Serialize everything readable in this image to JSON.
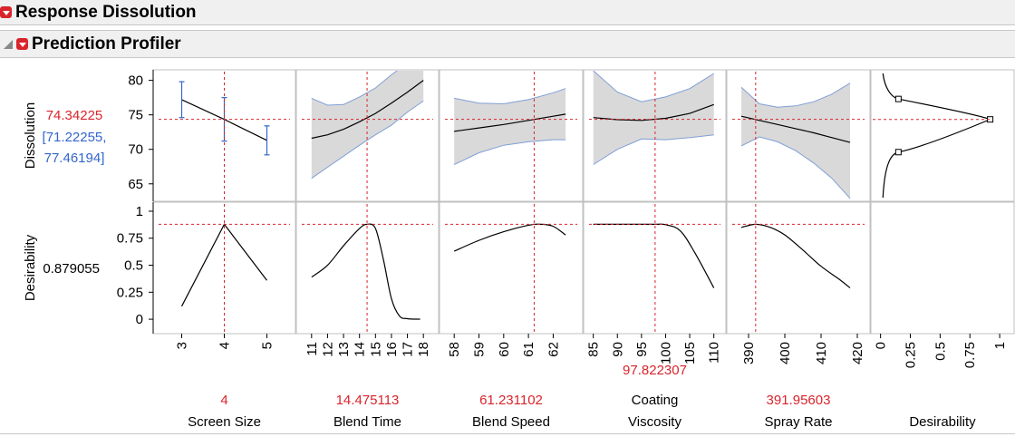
{
  "headers": {
    "response_title": "Response Dissolution",
    "profiler_title": "Prediction Profiler"
  },
  "colors": {
    "red": "#d9242b",
    "blue": "#3366cc",
    "band": "#d9d9d9",
    "band_edge": "#7f9fd6"
  },
  "chart_data": {
    "type": "line",
    "responses": [
      {
        "name": "Dissolution",
        "current": "74.34225",
        "ci_text": [
          "[71.22255,",
          "77.46194]"
        ],
        "current_value": 74.34225,
        "ylim": [
          63,
          81
        ],
        "yticks": [
          65,
          70,
          75,
          80
        ]
      },
      {
        "name": "Desirability",
        "current": "0.879055",
        "current_value": 0.879055,
        "ylim": [
          -0.1,
          1.05
        ],
        "yticks": [
          0,
          0.25,
          0.5,
          0.75,
          1
        ],
        "ytick_labels": [
          "0",
          "0.25",
          "0.5",
          "0.75",
          "1"
        ]
      }
    ],
    "factors": [
      {
        "name": "Screen Size",
        "name_lines": [
          "Screen Size"
        ],
        "value_text": "4",
        "current": 4,
        "xlim": [
          2.5,
          5.5
        ],
        "ticks": [
          3,
          4,
          5
        ],
        "tick_labels": [
          "3",
          "4",
          "5"
        ],
        "dissolution": {
          "style": "categorical",
          "points": [
            [
              3,
              77.2
            ],
            [
              4,
              74.34
            ],
            [
              5,
              71.3
            ]
          ],
          "errors": [
            [
              74.6,
              79.8
            ],
            [
              71.2,
              77.5
            ],
            [
              69.2,
              73.4
            ]
          ]
        },
        "desirability": [
          [
            3,
            0.12
          ],
          [
            4,
            0.879
          ],
          [
            5,
            0.36
          ]
        ]
      },
      {
        "name": "Blend Time",
        "name_lines": [
          "Blend Time"
        ],
        "value_text": "14.475113",
        "current": 14.475,
        "xlim": [
          10.5,
          18.5
        ],
        "ticks": [
          11,
          12,
          13,
          14,
          15,
          16,
          17,
          18
        ],
        "tick_labels": [
          "11",
          "12",
          "13",
          "14",
          "15",
          "16",
          "17",
          "18"
        ],
        "dissolution": {
          "style": "band",
          "x": [
            11,
            12,
            13,
            14,
            15,
            16,
            17,
            18
          ],
          "pred": [
            71.6,
            72.1,
            72.9,
            74.0,
            75.2,
            76.7,
            78.3,
            80.0
          ],
          "lower": [
            65.8,
            67.4,
            69.0,
            70.6,
            72.1,
            73.5,
            75.4,
            77.0
          ],
          "upper": [
            77.4,
            76.4,
            76.5,
            77.6,
            78.9,
            80.8,
            82.5,
            84.0
          ]
        },
        "desirability": [
          [
            11,
            0.39
          ],
          [
            12,
            0.5
          ],
          [
            13,
            0.68
          ],
          [
            14,
            0.84
          ],
          [
            14.475,
            0.879
          ],
          [
            15,
            0.84
          ],
          [
            15.5,
            0.55
          ],
          [
            16,
            0.19
          ],
          [
            16.5,
            0.03
          ],
          [
            17,
            0.005
          ],
          [
            17.8,
            0.0
          ]
        ]
      },
      {
        "name": "Blend Speed",
        "name_lines": [
          "Blend Speed"
        ],
        "value_text": "61.231102",
        "current": 61.231,
        "xlim": [
          57.7,
          62.9
        ],
        "ticks": [
          58,
          59,
          60,
          61,
          62
        ],
        "tick_labels": [
          "58",
          "59",
          "60",
          "61",
          "62"
        ],
        "dissolution": {
          "style": "band",
          "x": [
            58,
            59,
            60,
            61,
            62,
            62.5
          ],
          "pred": [
            72.6,
            73.1,
            73.6,
            74.2,
            74.8,
            75.1
          ],
          "lower": [
            67.8,
            69.5,
            70.6,
            71.1,
            71.4,
            71.4
          ],
          "upper": [
            77.4,
            76.7,
            76.6,
            77.2,
            78.2,
            78.8
          ]
        },
        "desirability": [
          [
            58,
            0.63
          ],
          [
            59,
            0.73
          ],
          [
            60,
            0.81
          ],
          [
            61,
            0.87
          ],
          [
            61.5,
            0.879
          ],
          [
            62,
            0.86
          ],
          [
            62.5,
            0.78
          ]
        ]
      },
      {
        "name": "Coating Viscosity",
        "name_lines": [
          "Coating",
          "Viscosity"
        ],
        "value_text": "97.822307",
        "current": 97.822,
        "xlim": [
          84.5,
          111
        ],
        "ticks": [
          85,
          90,
          95,
          100,
          105,
          110
        ],
        "tick_labels": [
          "85",
          "90",
          "95",
          "100",
          "105",
          "110"
        ],
        "dissolution": {
          "style": "band",
          "x": [
            85,
            90,
            95,
            100,
            105,
            110
          ],
          "pred": [
            74.6,
            74.3,
            74.2,
            74.5,
            75.2,
            76.5
          ],
          "lower": [
            67.8,
            70.0,
            71.5,
            71.4,
            71.7,
            72.1
          ],
          "upper": [
            81.4,
            78.3,
            76.9,
            77.6,
            78.8,
            81.0
          ]
        },
        "desirability": [
          [
            85,
            0.879
          ],
          [
            90,
            0.879
          ],
          [
            95,
            0.879
          ],
          [
            98,
            0.879
          ],
          [
            100,
            0.875
          ],
          [
            103,
            0.82
          ],
          [
            106,
            0.62
          ],
          [
            110,
            0.29
          ]
        ]
      },
      {
        "name": "Spray Rate",
        "name_lines": [
          "Spray Rate"
        ],
        "value_text": "391.95603",
        "current": 391.956,
        "xlim": [
          386,
          421.5
        ],
        "ticks": [
          390,
          400,
          410,
          420
        ],
        "tick_labels": [
          "390",
          "400",
          "410",
          "420"
        ],
        "dissolution": {
          "style": "band",
          "x": [
            388,
            393,
            398,
            403,
            408,
            413,
            418
          ],
          "pred": [
            74.8,
            74.2,
            73.6,
            73.0,
            72.4,
            71.7,
            71.0
          ],
          "lower": [
            70.5,
            71.8,
            71.1,
            69.8,
            68.0,
            65.8,
            62.9
          ],
          "upper": [
            79.0,
            76.6,
            76.1,
            76.3,
            76.9,
            78.0,
            79.6
          ]
        },
        "desirability": [
          [
            388,
            0.85
          ],
          [
            392,
            0.879
          ],
          [
            396,
            0.85
          ],
          [
            400,
            0.78
          ],
          [
            405,
            0.64
          ],
          [
            410,
            0.49
          ],
          [
            415,
            0.37
          ],
          [
            418,
            0.29
          ]
        ]
      },
      {
        "name": "Desirability",
        "name_lines": [
          "Desirability"
        ],
        "value_text": "",
        "xlim": [
          -0.02,
          1.06
        ],
        "ticks": [
          0,
          0.25,
          0.5,
          0.75,
          1
        ],
        "tick_labels": [
          "0",
          "0.25",
          "0.5",
          "0.75",
          "1"
        ],
        "desirability_function": {
          "low": [
            0.15,
            69.6
          ],
          "target": [
            0.92,
            74.34
          ],
          "high": [
            0.15,
            77.3
          ]
        }
      }
    ]
  }
}
